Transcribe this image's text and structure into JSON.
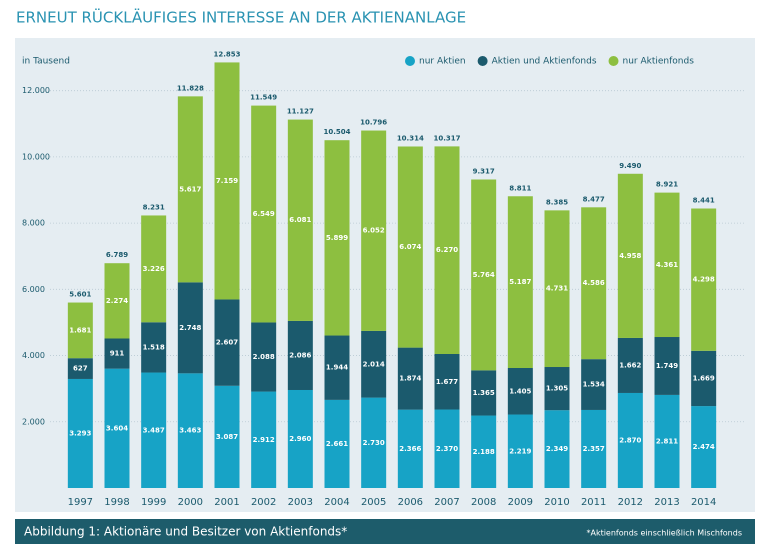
{
  "chart_data": {
    "type": "stacked_bar",
    "title": "ERNEUT RÜCKLÄUFIGES INTERESSE AN DER AKTIENANLAGE",
    "y_label": "in Tausend",
    "caption": "Abbildung 1: Aktionäre und Besitzer von Aktienfonds*",
    "footnote": "*Aktienfonds einschließlich Mischfonds",
    "categories": [
      "1997",
      "1998",
      "1999",
      "2000",
      "2001",
      "2002",
      "2003",
      "2004",
      "2005",
      "2006",
      "2007",
      "2008",
      "2009",
      "2010",
      "2011",
      "2012",
      "2013",
      "2014"
    ],
    "series": [
      {
        "name": "nur Aktien",
        "color": "#17a3c6",
        "values": [
          3293,
          3604,
          3487,
          3463,
          3087,
          2912,
          2960,
          2661,
          2730,
          2366,
          2370,
          2188,
          2219,
          2349,
          2357,
          2870,
          2811,
          2474
        ],
        "value_labels": [
          "3.293",
          "3.604",
          "3.487",
          "3.463",
          "3.087",
          "2.912",
          "2.960",
          "2.661",
          "2.730",
          "2.366",
          "2.370",
          "2.188",
          "2.219",
          "2.349",
          "2.357",
          "2.870",
          "2.811",
          "2.474"
        ]
      },
      {
        "name": "Aktien und Aktienfonds",
        "color": "#1b5a6d",
        "values": [
          627,
          911,
          1518,
          2748,
          2607,
          2088,
          2086,
          1944,
          2014,
          1874,
          1677,
          1365,
          1405,
          1305,
          1534,
          1662,
          1749,
          1669
        ],
        "value_labels": [
          "627",
          "911",
          "1.518",
          "2.748",
          "2.607",
          "2.088",
          "2.086",
          "1.944",
          "2.014",
          "1.874",
          "1.677",
          "1.365",
          "1.405",
          "1.305",
          "1.534",
          "1.662",
          "1.749",
          "1.669"
        ]
      },
      {
        "name": "nur Aktienfonds",
        "color": "#8dbf40",
        "values": [
          1681,
          2274,
          3226,
          5617,
          7159,
          6549,
          6081,
          5899,
          6052,
          6074,
          6270,
          5764,
          5187,
          4731,
          4586,
          4958,
          4361,
          4298
        ],
        "value_labels": [
          "1.681",
          "2.274",
          "3.226",
          "5.617",
          "7.159",
          "6.549",
          "6.081",
          "5.899",
          "6.052",
          "6.074",
          "6.270",
          "5.764",
          "5.187",
          "4.731",
          "4.586",
          "4.958",
          "4.361",
          "4.298"
        ]
      }
    ],
    "totals": {
      "values": [
        5601,
        6789,
        8231,
        11828,
        12853,
        11549,
        11127,
        10504,
        10796,
        10314,
        10317,
        9317,
        8811,
        8385,
        8477,
        9490,
        8921,
        8441
      ],
      "value_labels": [
        "5.601",
        "6.789",
        "8.231",
        "11.828",
        "12.853",
        "11.549",
        "11.127",
        "10.504",
        "10.796",
        "10.314",
        "10.317",
        "9.317",
        "8.811",
        "8.385",
        "8.477",
        "9.490",
        "8.921",
        "8.441"
      ]
    },
    "ylim": [
      0,
      13500
    ],
    "yticks": [
      {
        "value": 2000,
        "label": "2.000"
      },
      {
        "value": 4000,
        "label": "4.000"
      },
      {
        "value": 6000,
        "label": "6.000"
      },
      {
        "value": 8000,
        "label": "8.000"
      },
      {
        "value": 10000,
        "label": "10.000"
      },
      {
        "value": 12000,
        "label": "12.000"
      }
    ],
    "grid": true,
    "legend": "top-right"
  }
}
